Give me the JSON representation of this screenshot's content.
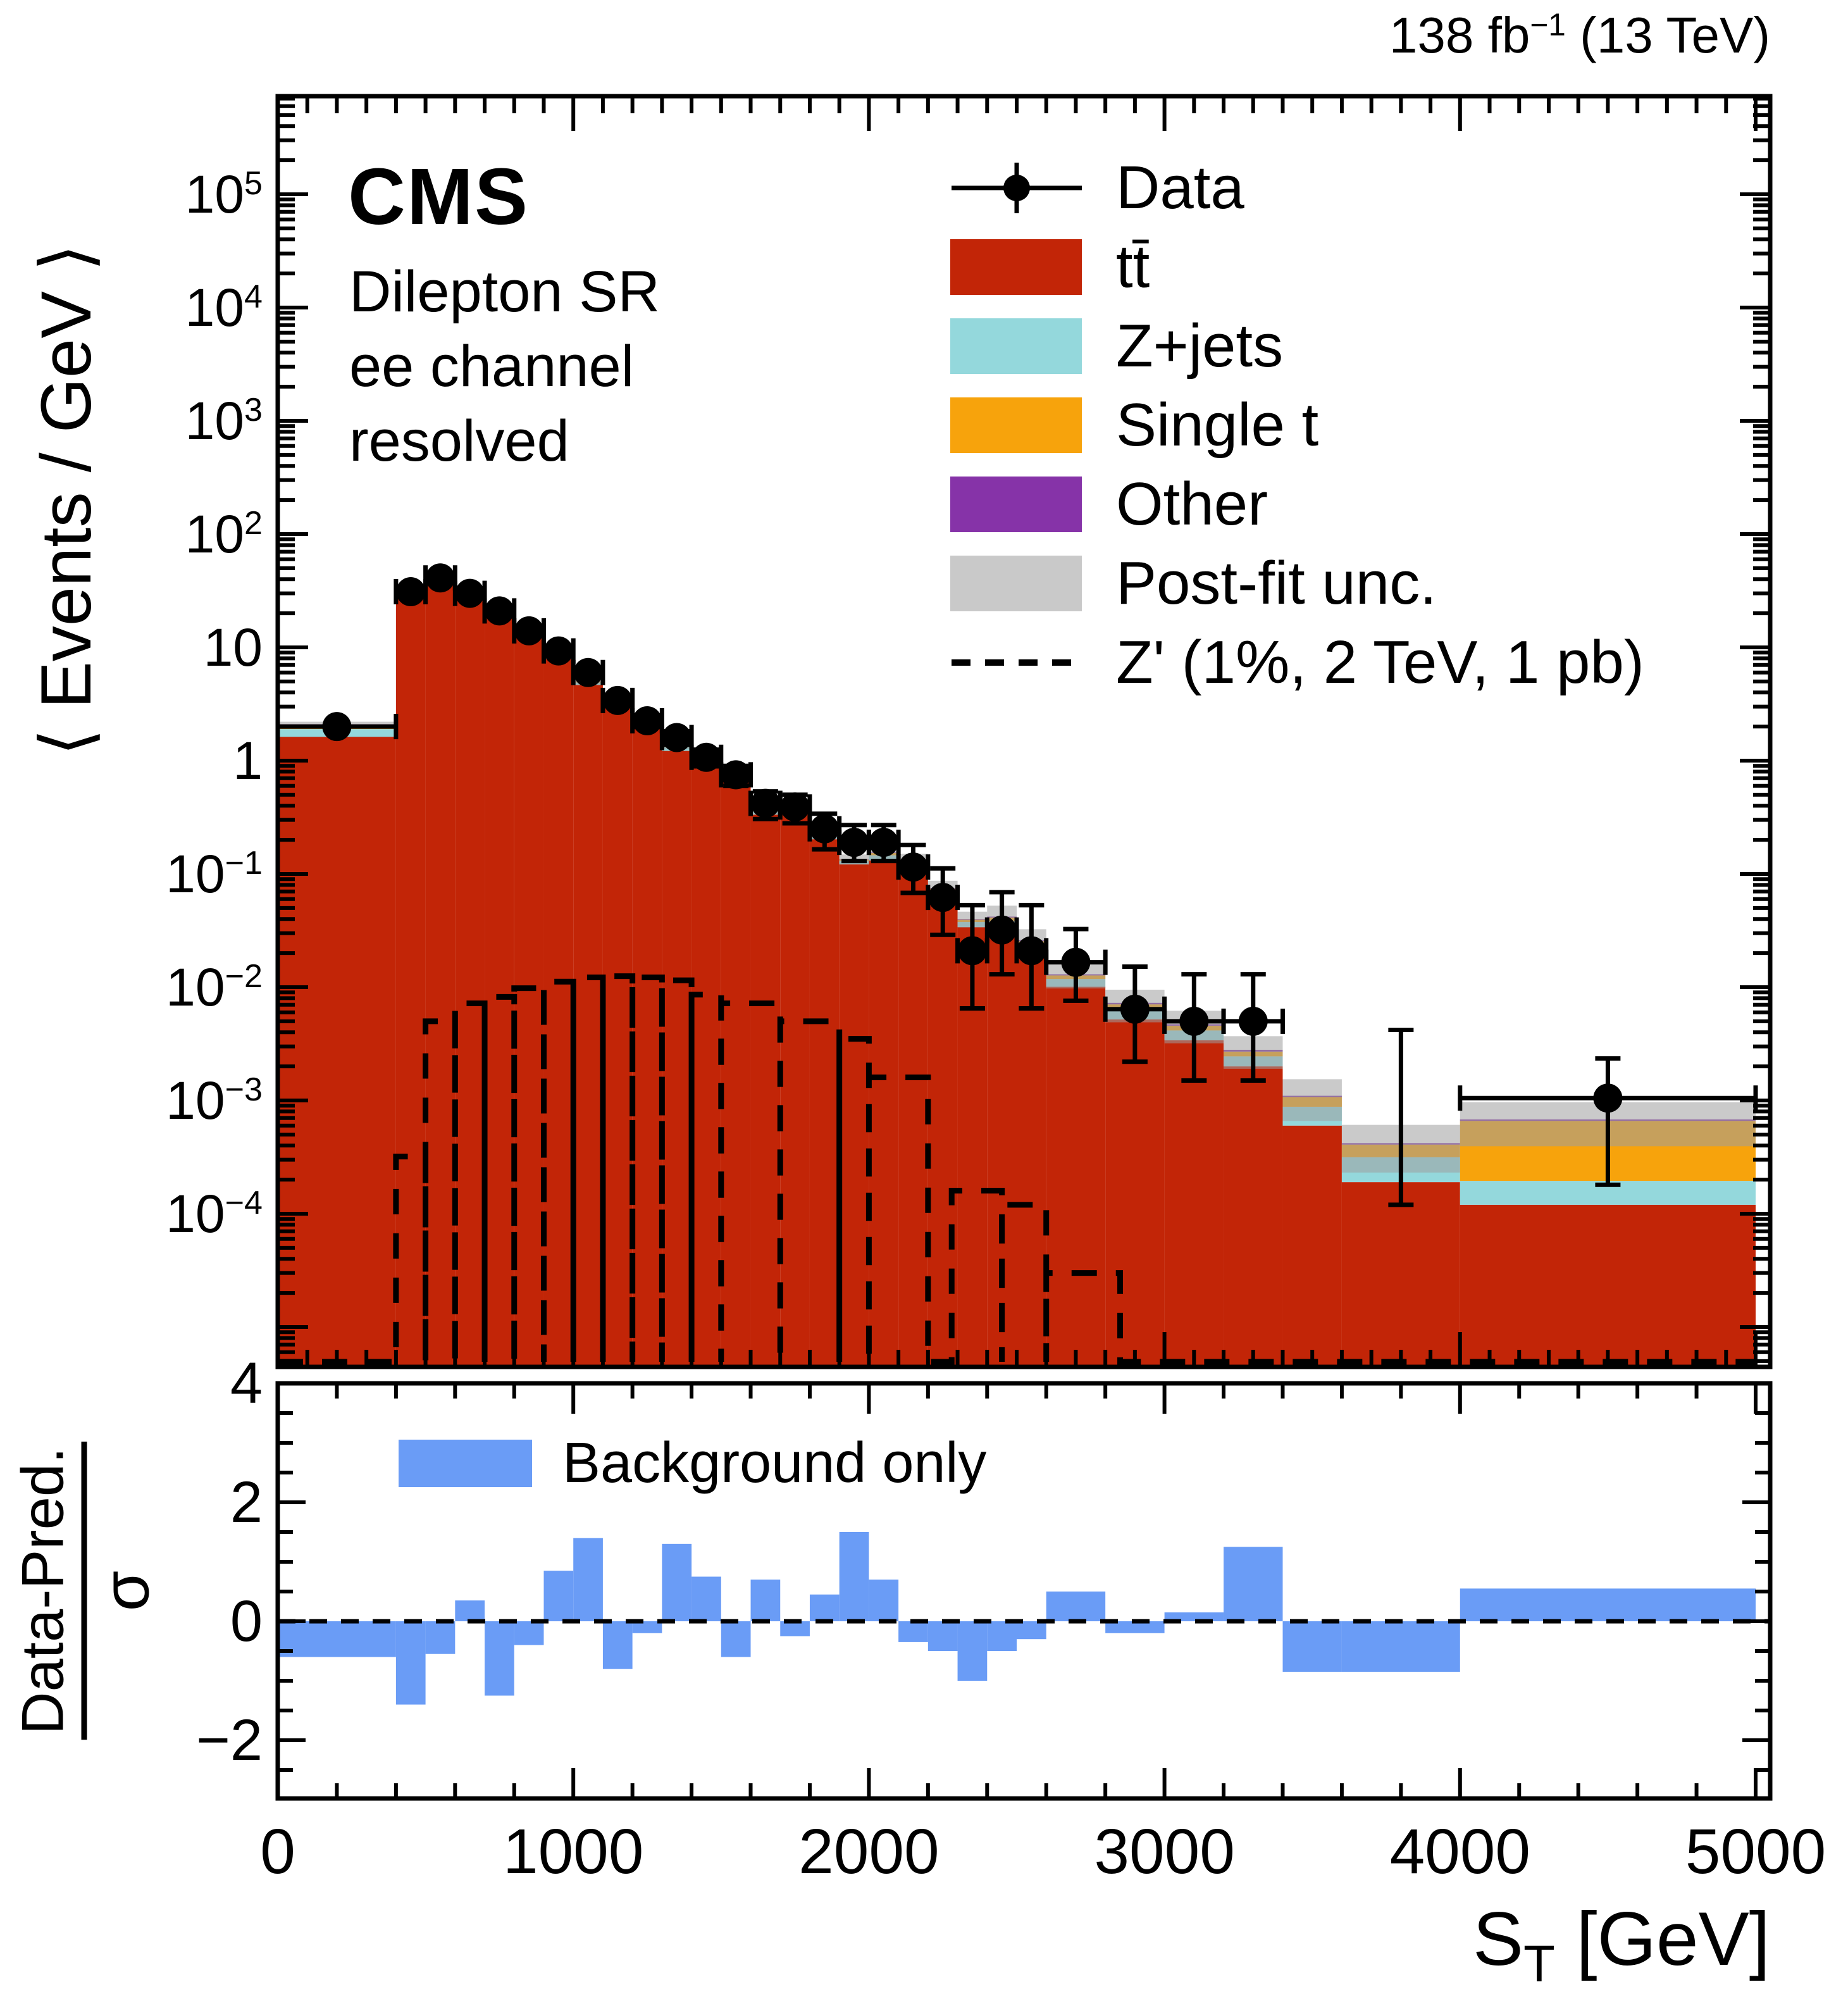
{
  "header": {
    "cms": "CMS",
    "region_lines": [
      "Dilepton SR",
      "ee channel",
      "resolved"
    ],
    "lumi": {
      "base": "138 fb",
      "sup": "−1",
      "rest": " (13 TeV)"
    }
  },
  "legend": {
    "items": [
      {
        "key": "data",
        "label": "Data"
      },
      {
        "key": "ttbar",
        "label": "tt̄"
      },
      {
        "key": "zjets",
        "label": "Z+jets"
      },
      {
        "key": "singlet",
        "label": "Single t"
      },
      {
        "key": "other",
        "label": "Other"
      },
      {
        "key": "unc",
        "label": "Post-fit unc."
      },
      {
        "key": "zprime",
        "label": "Z' (1%, 2 TeV, 1 pb)"
      }
    ]
  },
  "ratio_legend": {
    "label": "Background only"
  },
  "axes": {
    "x": {
      "title": {
        "base": "S",
        "sub": "T",
        "rest": " [GeV]"
      },
      "tick_values": [
        0,
        1000,
        2000,
        3000,
        4000,
        5000
      ],
      "tick_labels": [
        "0",
        "1000",
        "2000",
        "3000",
        "4000",
        "5000"
      ],
      "minor_step_main": 100,
      "minor_step_ratio": 200,
      "range": [
        0,
        5049
      ]
    },
    "y_main": {
      "title": "⟨ Events / GeV ⟩",
      "scale": "log",
      "labeled_decades": [
        5,
        4,
        3,
        2,
        1,
        0,
        -1,
        -2,
        -3,
        -4
      ],
      "range": [
        4.5e-06,
        730000
      ]
    },
    "y_ratio": {
      "title_num": "Data-Pred.",
      "title_den": "σ",
      "tick_values": [
        4,
        2,
        0,
        -2
      ],
      "tick_labels": [
        "4",
        "2",
        "0",
        "−2"
      ],
      "minor_step": 0.5,
      "range": [
        -2.98,
        4.0
      ]
    }
  },
  "colors": {
    "ttbar": "#C22507",
    "zjets": "#94D8DC",
    "singlet": "#F7A30C",
    "other": "#8633A8",
    "unc": "#9E9E9E",
    "zprime": "#000000",
    "data": "#000000",
    "ratio_fill": "#6A9CF6",
    "frame": "#000000"
  },
  "chart_data": {
    "type": "stacked-histogram-with-ratio",
    "title": "CMS Dilepton SR ee channel resolved",
    "xlabel": "S_T [GeV]",
    "ylabel_main": "< Events / GeV >",
    "ylabel_ratio": "(Data-Pred.)/sigma",
    "x_unit": "GeV",
    "bin_edges": [
      0,
      400,
      500,
      600,
      700,
      800,
      900,
      1000,
      1100,
      1200,
      1300,
      1400,
      1500,
      1600,
      1700,
      1800,
      1900,
      2000,
      2100,
      2200,
      2300,
      2400,
      2500,
      2600,
      2800,
      3000,
      3200,
      3400,
      3600,
      4000,
      5000
    ],
    "total_pred": [
      2.1,
      33,
      43,
      29,
      23,
      14.8,
      8.5,
      5.0,
      3.8,
      2.35,
      1.35,
      0.95,
      0.82,
      0.37,
      0.41,
      0.225,
      0.135,
      0.155,
      0.13,
      0.075,
      0.04,
      0.042,
      0.026,
      0.013,
      0.0072,
      0.0047,
      0.0028,
      0.0011,
      0.00042,
      0.00068
    ],
    "series": [
      {
        "name": "tt̄",
        "values": [
          1.62,
          30.7,
          40.0,
          27.0,
          21.4,
          13.8,
          7.9,
          4.65,
          3.53,
          2.12,
          1.22,
          0.855,
          0.74,
          0.333,
          0.369,
          0.2025,
          0.1215,
          0.132,
          0.11,
          0.0638,
          0.034,
          0.0328,
          0.0203,
          0.0101,
          0.0052,
          0.0034,
          0.002,
          0.0006,
          0.00019,
          0.00012
        ]
      },
      {
        "name": "Z+jets",
        "values": [
          0.28,
          1.65,
          2.15,
          1.45,
          1.15,
          0.74,
          0.43,
          0.25,
          0.19,
          0.16,
          0.092,
          0.065,
          0.056,
          0.025,
          0.028,
          0.0153,
          0.0092,
          0.014,
          0.0117,
          0.0067,
          0.0036,
          0.0055,
          0.0034,
          0.0017,
          0.0012,
          0.00075,
          0.00045,
          0.00028,
          0.000126,
          7.5e-05
        ]
      },
      {
        "name": "Single t",
        "values": [
          0.19,
          0.5,
          0.65,
          0.44,
          0.35,
          0.22,
          0.13,
          0.075,
          0.057,
          0.052,
          0.03,
          0.021,
          0.018,
          0.0081,
          0.009,
          0.005,
          0.003,
          0.007,
          0.0059,
          0.0034,
          0.0018,
          0.0029,
          0.0018,
          0.0009,
          0.00065,
          0.00042,
          0.00025,
          0.00019,
          9.2e-05,
          0.000465
        ]
      },
      {
        "name": "Other",
        "values": [
          0.01,
          0.17,
          0.22,
          0.15,
          0.12,
          0.074,
          0.043,
          0.025,
          0.019,
          0.024,
          0.014,
          0.0095,
          0.008,
          0.0037,
          0.004,
          0.0023,
          0.0014,
          0.0023,
          0.002,
          0.0011,
          0.0006,
          0.0008,
          0.0005,
          0.0003,
          0.00022,
          0.00014,
          0.0001,
          3e-05,
          1.2e-05,
          2e-05
        ]
      }
    ],
    "unc_frac": [
      0.05,
      0.07,
      0.07,
      0.07,
      0.07,
      0.07,
      0.07,
      0.07,
      0.07,
      0.07,
      0.07,
      0.07,
      0.07,
      0.1,
      0.1,
      0.1,
      0.1,
      0.16,
      0.16,
      0.16,
      0.16,
      0.25,
      0.25,
      0.25,
      0.32,
      0.32,
      0.32,
      0.4,
      0.45,
      0.42
    ],
    "data_points": [
      {
        "x": 200,
        "y": 2.0,
        "ehi": 0.09,
        "elo": 0.09,
        "marker": true
      },
      {
        "x": 450,
        "y": 31,
        "ehi": 1.0,
        "elo": 1.0,
        "marker": true
      },
      {
        "x": 550,
        "y": 41,
        "ehi": 1.1,
        "elo": 1.1,
        "marker": true
      },
      {
        "x": 650,
        "y": 30,
        "ehi": 1.0,
        "elo": 1.0,
        "marker": true
      },
      {
        "x": 750,
        "y": 21,
        "ehi": 0.8,
        "elo": 0.8,
        "marker": true
      },
      {
        "x": 850,
        "y": 14,
        "ehi": 0.65,
        "elo": 0.65,
        "marker": true
      },
      {
        "x": 950,
        "y": 9.3,
        "ehi": 0.54,
        "elo": 0.54,
        "marker": true
      },
      {
        "x": 1050,
        "y": 6.0,
        "ehi": 0.43,
        "elo": 0.43,
        "marker": true
      },
      {
        "x": 1150,
        "y": 3.4,
        "ehi": 0.33,
        "elo": 0.33,
        "marker": true
      },
      {
        "x": 1250,
        "y": 2.25,
        "ehi": 0.27,
        "elo": 0.27,
        "marker": true
      },
      {
        "x": 1350,
        "y": 1.6,
        "ehi": 0.22,
        "elo": 0.22,
        "marker": true
      },
      {
        "x": 1450,
        "y": 1.07,
        "ehi": 0.18,
        "elo": 0.18,
        "marker": true
      },
      {
        "x": 1550,
        "y": 0.75,
        "ehi": 0.15,
        "elo": 0.15,
        "marker": true
      },
      {
        "x": 1650,
        "y": 0.42,
        "ehi": 0.115,
        "elo": 0.115,
        "marker": true
      },
      {
        "x": 1750,
        "y": 0.39,
        "ehi": 0.11,
        "elo": 0.11,
        "marker": true
      },
      {
        "x": 1850,
        "y": 0.25,
        "ehi": 0.09,
        "elo": 0.085,
        "marker": true
      },
      {
        "x": 1950,
        "y": 0.19,
        "ehi": 0.08,
        "elo": 0.06,
        "marker": true
      },
      {
        "x": 2050,
        "y": 0.19,
        "ehi": 0.08,
        "elo": 0.06,
        "marker": true
      },
      {
        "x": 2150,
        "y": 0.115,
        "ehi": 0.065,
        "elo": 0.047,
        "marker": true
      },
      {
        "x": 2250,
        "y": 0.062,
        "ehi": 0.05,
        "elo": 0.033,
        "marker": true
      },
      {
        "x": 2350,
        "y": 0.021,
        "ehi": 0.032,
        "elo": 0.0145,
        "marker": true
      },
      {
        "x": 2450,
        "y": 0.032,
        "ehi": 0.037,
        "elo": 0.019,
        "marker": true
      },
      {
        "x": 2550,
        "y": 0.021,
        "ehi": 0.032,
        "elo": 0.0145,
        "marker": true
      },
      {
        "x": 2700,
        "y": 0.0166,
        "ehi": 0.016,
        "elo": 0.009,
        "marker": true
      },
      {
        "x": 2900,
        "y": 0.0064,
        "ehi": 0.0088,
        "elo": 0.0042,
        "marker": true
      },
      {
        "x": 3100,
        "y": 0.005,
        "ehi": 0.008,
        "elo": 0.0035,
        "marker": true
      },
      {
        "x": 3300,
        "y": 0.005,
        "ehi": 0.008,
        "elo": 0.0035,
        "marker": true
      },
      null,
      {
        "x": 3800,
        "y": 0.0007,
        "ehi": 0.0035,
        "elo": 0.00058,
        "marker": false
      },
      {
        "x": 4500,
        "y": 0.00105,
        "ehi": 0.0013,
        "elo": 0.00087,
        "marker": true
      }
    ],
    "zprime_steps": [
      [
        400,
        500,
        0.00032
      ],
      [
        500,
        600,
        0.005
      ],
      [
        600,
        700,
        0.0072
      ],
      [
        700,
        800,
        0.0082
      ],
      [
        800,
        900,
        0.0098
      ],
      [
        900,
        1000,
        0.0112
      ],
      [
        1000,
        1100,
        0.0122
      ],
      [
        1100,
        1200,
        0.0125
      ],
      [
        1200,
        1300,
        0.0122
      ],
      [
        1300,
        1400,
        0.0115
      ],
      [
        1400,
        1500,
        0.0086
      ],
      [
        1500,
        1700,
        0.0072
      ],
      [
        1700,
        1900,
        0.005
      ],
      [
        1900,
        2000,
        0.0035
      ],
      [
        2000,
        2200,
        0.0016
      ],
      [
        2280,
        2450,
        0.00016
      ],
      [
        2450,
        2600,
        0.00012
      ],
      [
        2600,
        2850,
        3e-05
      ]
    ],
    "ratio_bars": [
      -0.6,
      -1.4,
      -0.55,
      0.35,
      -1.25,
      -0.4,
      0.85,
      1.4,
      -0.8,
      -0.2,
      1.3,
      0.75,
      -0.6,
      0.7,
      -0.25,
      0.45,
      1.5,
      0.7,
      -0.35,
      -0.5,
      -1.0,
      -0.5,
      -0.3,
      0.5,
      -0.2,
      0.15,
      1.25,
      -0.85,
      -0.85,
      0.55
    ]
  }
}
